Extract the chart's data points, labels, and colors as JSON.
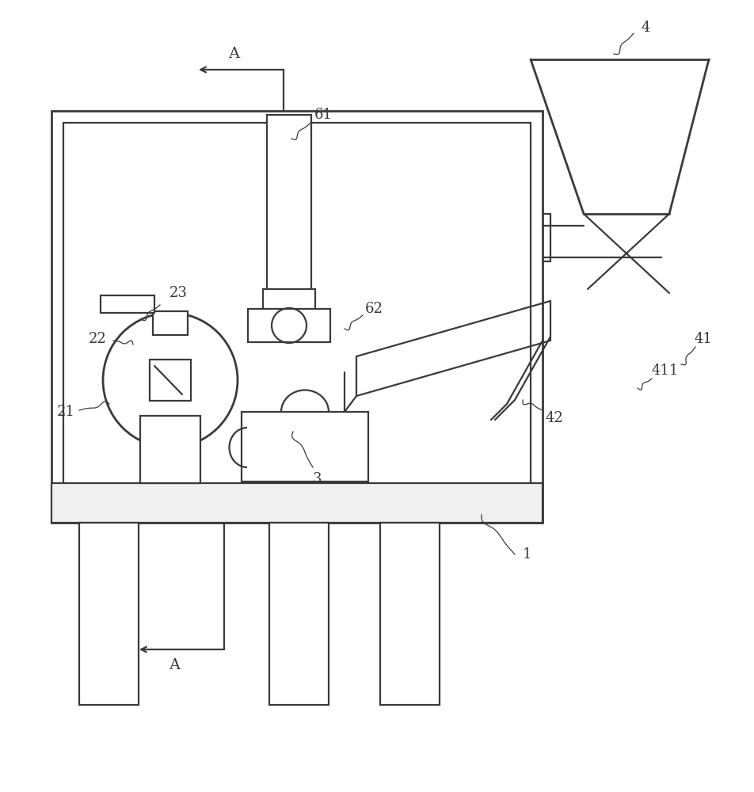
{
  "bg_color": "#ffffff",
  "line_color": "#3a3a3a",
  "lw": 1.6,
  "tlw": 2.0,
  "fs": 13
}
